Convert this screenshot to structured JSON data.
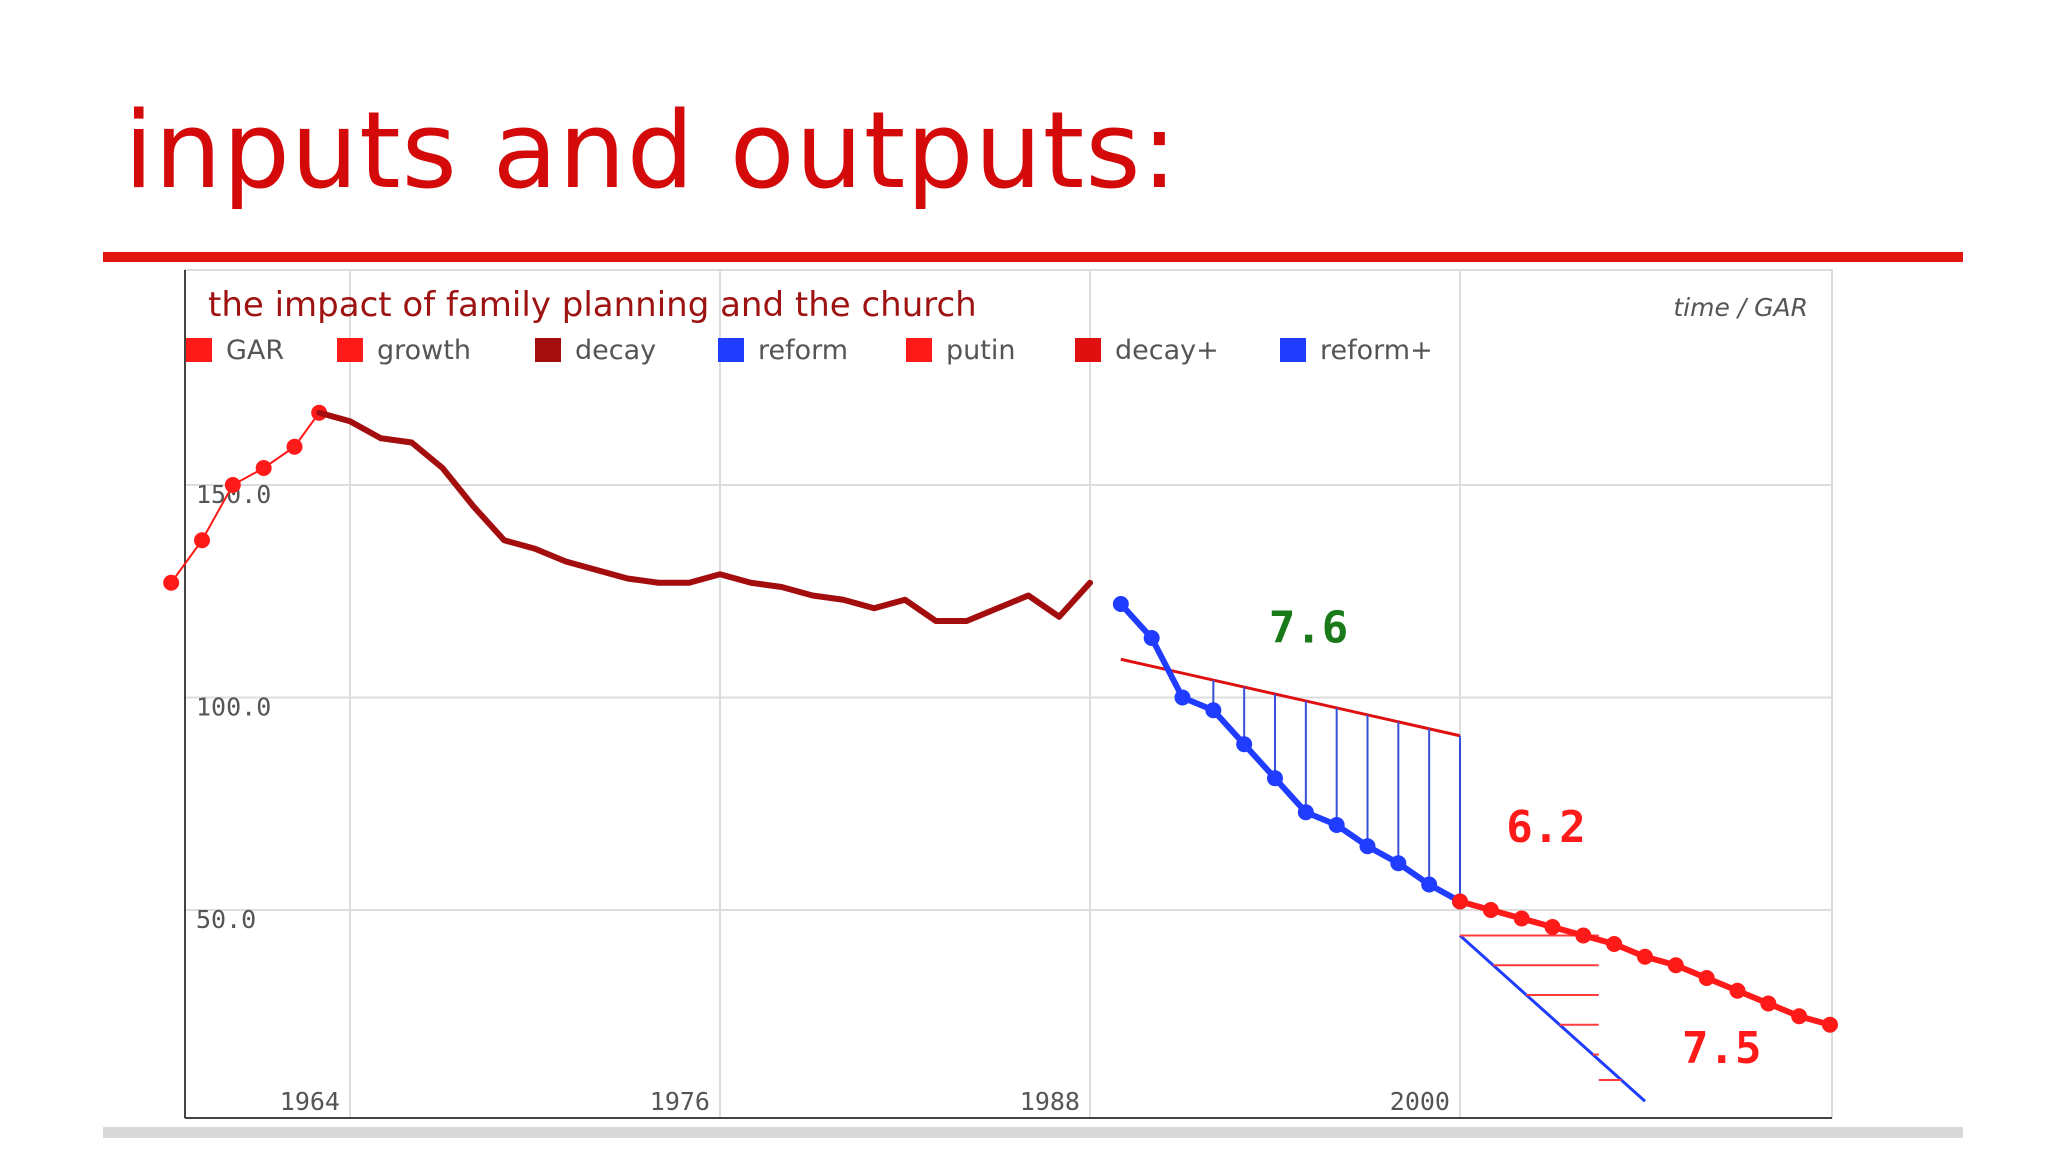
{
  "slide": {
    "title": "inputs and outputs:",
    "colors": {
      "title": "#d40a0a",
      "rule": "#e0160f"
    }
  },
  "chart_data": {
    "type": "line",
    "title": "the impact of family planning and the church",
    "subtitle": "time / GAR",
    "xlabel": "",
    "ylabel": "",
    "xlim": [
      1958,
      2012
    ],
    "ylim": [
      0,
      200
    ],
    "x_ticks": [
      "1964",
      "1976",
      "1988",
      "2000"
    ],
    "y_ticks": [
      "150.0",
      "100.0",
      "50.0"
    ],
    "grid": true,
    "legend_position": "top-left",
    "legend": [
      {
        "label": "GAR",
        "color": "#ff1a1a"
      },
      {
        "label": "growth",
        "color": "#ff1a1a"
      },
      {
        "label": "decay",
        "color": "#a30d0d"
      },
      {
        "label": "reform",
        "color": "#1f3cff"
      },
      {
        "label": "putin",
        "color": "#ff1a1a"
      },
      {
        "label": "decay+",
        "color": "#e01010"
      },
      {
        "label": "reform+",
        "color": "#1f3cff"
      }
    ],
    "series": [
      {
        "name": "growth",
        "color": "#ff1a1a",
        "style": "thin-dots",
        "x": [
          1958.2,
          1959.2,
          1960.2,
          1961.2,
          1962.2,
          1963.0
        ],
        "y": [
          127,
          137,
          150,
          154,
          159,
          167
        ]
      },
      {
        "name": "decay",
        "color": "#a30d0d",
        "style": "thick",
        "x": [
          1963.0,
          1964.0,
          1965.0,
          1966.0,
          1967.0,
          1968.0,
          1969.0,
          1970.0,
          1971.0,
          1972.0,
          1973.0,
          1974.0,
          1975.0,
          1976.0,
          1977.0,
          1978.0,
          1979.0,
          1980.0,
          1981.0,
          1982.0,
          1983.0,
          1984.0,
          1985.0,
          1986.0,
          1987.0,
          1988.0
        ],
        "y": [
          167,
          165,
          161,
          160,
          154,
          145,
          137,
          135,
          132,
          130,
          128,
          127,
          127,
          129,
          127,
          126,
          124,
          123,
          121,
          123,
          118,
          118,
          121,
          124,
          119,
          127
        ]
      },
      {
        "name": "reform",
        "color": "#1f3cff",
        "style": "thick-dots",
        "x": [
          1989.0,
          1990.0,
          1991.0,
          1992.0,
          1993.0,
          1994.0,
          1995.0,
          1996.0,
          1997.0,
          1998.0,
          1999.0,
          2000.0
        ],
        "y": [
          122,
          114,
          100,
          97,
          89,
          81,
          73,
          70,
          65,
          61,
          56,
          52
        ]
      },
      {
        "name": "putin",
        "color": "#ff1a1a",
        "style": "thick-dots",
        "x": [
          2000.0,
          2001.0,
          2002.0,
          2003.0,
          2004.0,
          2005.0,
          2006.0,
          2007.0,
          2008.0,
          2009.0,
          2010.0,
          2011.0,
          2012.0
        ],
        "y": [
          52,
          50,
          48,
          46,
          44,
          42,
          39,
          37,
          34,
          31,
          28,
          25,
          23
        ]
      }
    ],
    "annotations": [
      {
        "text": "7.6",
        "color": "#1a7a1a",
        "x": 1993.8,
        "y": 113
      },
      {
        "text": "6.2",
        "color": "#ff1a1a",
        "x": 2001.5,
        "y": 66
      },
      {
        "text": "7.5",
        "color": "#ff1a1a",
        "x": 2007.2,
        "y": 14
      }
    ],
    "overlays": [
      {
        "name": "reform-trend",
        "color": "#e01010",
        "x": [
          1989.0,
          2000.0
        ],
        "y": [
          109,
          91
        ]
      },
      {
        "name": "putin-trend",
        "color": "#1f3cff",
        "x": [
          2000.0,
          2006.0
        ],
        "y": [
          44,
          5
        ]
      },
      {
        "name": "reform-gap-lines",
        "color": "#1f3cff",
        "x": [
          1992.0,
          1993.0,
          1994.0,
          1995.0,
          1996.0,
          1997.0,
          1998.0,
          1999.0,
          2000.0
        ]
      },
      {
        "name": "putin-gap-lines",
        "color": "#ff1a1a",
        "x": [
          2004.0,
          2005.0,
          2006.0
        ]
      }
    ]
  }
}
